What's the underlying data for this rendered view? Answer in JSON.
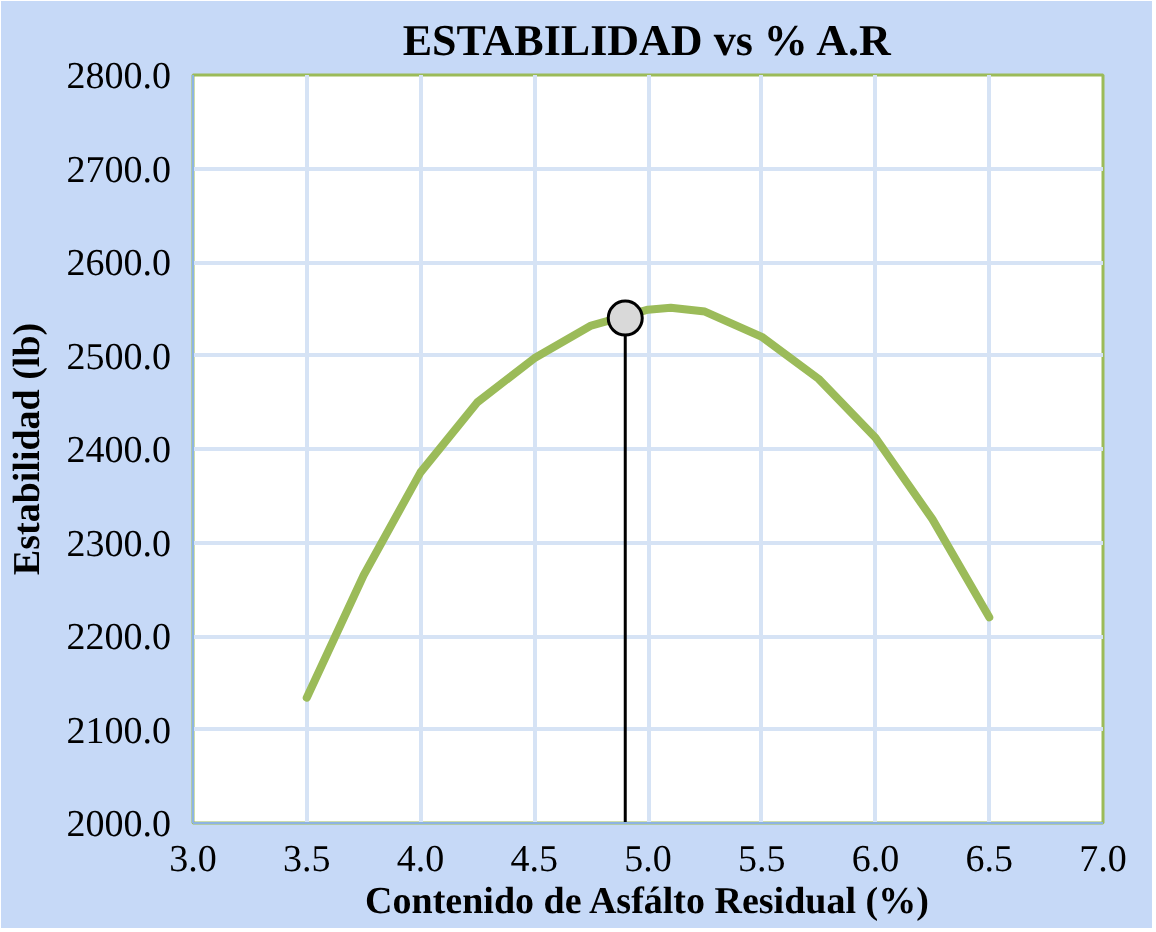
{
  "chart_data": {
    "type": "line",
    "title": "ESTABILIDAD vs % A.R",
    "xlabel": "Contenido de Asfálto Residual (%)",
    "ylabel": "Estabilidad (lb)",
    "series": [
      {
        "color": "#9bbb59",
        "line_style": "solid",
        "x": [
          3.5,
          3.75,
          4.0,
          4.25,
          4.5,
          4.75,
          5.0,
          5.1,
          5.25,
          5.5,
          5.75,
          6.0,
          6.25,
          6.5
        ],
        "values": [
          2134,
          2265,
          2375,
          2450,
          2497,
          2532,
          2549,
          2551,
          2547,
          2520,
          2475,
          2412,
          2325,
          2220
        ]
      },
      {
        "type": "scatter",
        "color": "#d9d9d9",
        "marker": "circle",
        "x": [
          4.9
        ],
        "values": [
          2540
        ]
      }
    ],
    "ref_lines": [
      {
        "axis": "x",
        "value": 4.9,
        "color": "#000000"
      }
    ],
    "xlim": [
      3,
      7
    ],
    "ylim": [
      2000,
      2800
    ],
    "xticks": [
      {
        "value": 3,
        "label": "3.0"
      },
      {
        "value": 3.5,
        "label": "3.5"
      },
      {
        "value": 4,
        "label": "4.0"
      },
      {
        "value": 4.5,
        "label": "4.5"
      },
      {
        "value": 5,
        "label": "5.0"
      },
      {
        "value": 5.5,
        "label": "5.5"
      },
      {
        "value": 6,
        "label": "6.0"
      },
      {
        "value": 6.5,
        "label": "6.5"
      },
      {
        "value": 7,
        "label": "7.0"
      }
    ],
    "yticks": [
      {
        "value": 2000,
        "label": "2000.0"
      },
      {
        "value": 2100,
        "label": "2100.0"
      },
      {
        "value": 2200,
        "label": "2200.0"
      },
      {
        "value": 2300,
        "label": "2300.0"
      },
      {
        "value": 2400,
        "label": "2400.0"
      },
      {
        "value": 2500,
        "label": "2500.0"
      },
      {
        "value": 2600,
        "label": "2600.0"
      },
      {
        "value": 2700,
        "label": "2700.0"
      },
      {
        "value": 2800,
        "label": "2800.0"
      }
    ],
    "grid": true
  }
}
